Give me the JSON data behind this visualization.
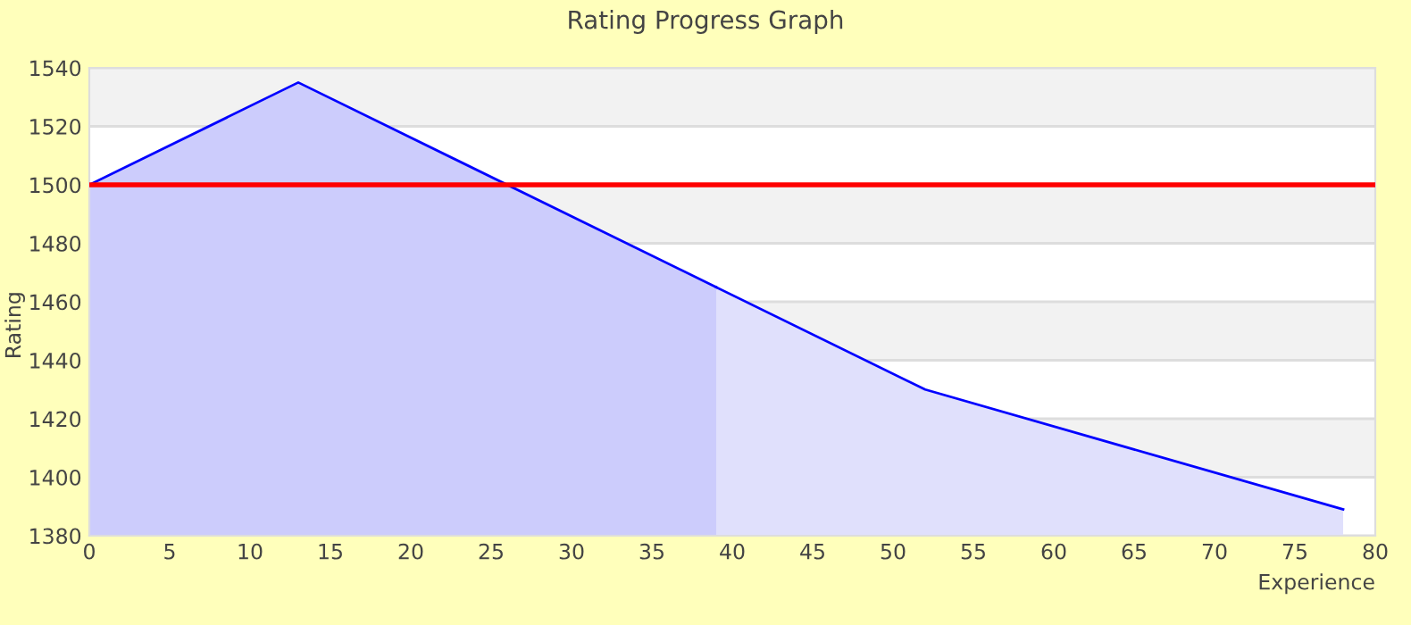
{
  "chart_data": {
    "type": "area",
    "title": "Rating Progress Graph",
    "xlabel": "Experience",
    "ylabel": "Rating",
    "series": [
      {
        "color": "#ccccfc",
        "x": [
          0,
          13,
          39
        ],
        "values": [
          1500,
          1535,
          1465
        ]
      },
      {
        "color": "#e0e0fc",
        "x": [
          39,
          52,
          78
        ],
        "values": [
          1465,
          1430,
          1389
        ]
      }
    ],
    "xlim": [
      0,
      80
    ],
    "xticks": [
      0,
      5,
      10,
      15,
      20,
      25,
      30,
      35,
      40,
      45,
      50,
      55,
      60,
      65,
      70,
      75,
      80
    ],
    "ylim": [
      1380,
      1540
    ],
    "yticks": [
      1380,
      1400,
      1420,
      1440,
      1460,
      1480,
      1500,
      1520,
      1540
    ],
    "grid": "y",
    "ref_lines": [
      {
        "axis": "y",
        "value": 1500,
        "color": "#ff0000"
      }
    ],
    "bands": [
      {
        "axis": "y",
        "from": 1400,
        "to": 1420,
        "color": "#f2f2f2"
      },
      {
        "axis": "y",
        "from": 1440,
        "to": 1460,
        "color": "#f2f2f2"
      },
      {
        "axis": "y",
        "from": 1480,
        "to": 1500,
        "color": "#f2f2f2"
      },
      {
        "axis": "y",
        "from": 1520,
        "to": 1540,
        "color": "#f2f2f2"
      }
    ]
  }
}
